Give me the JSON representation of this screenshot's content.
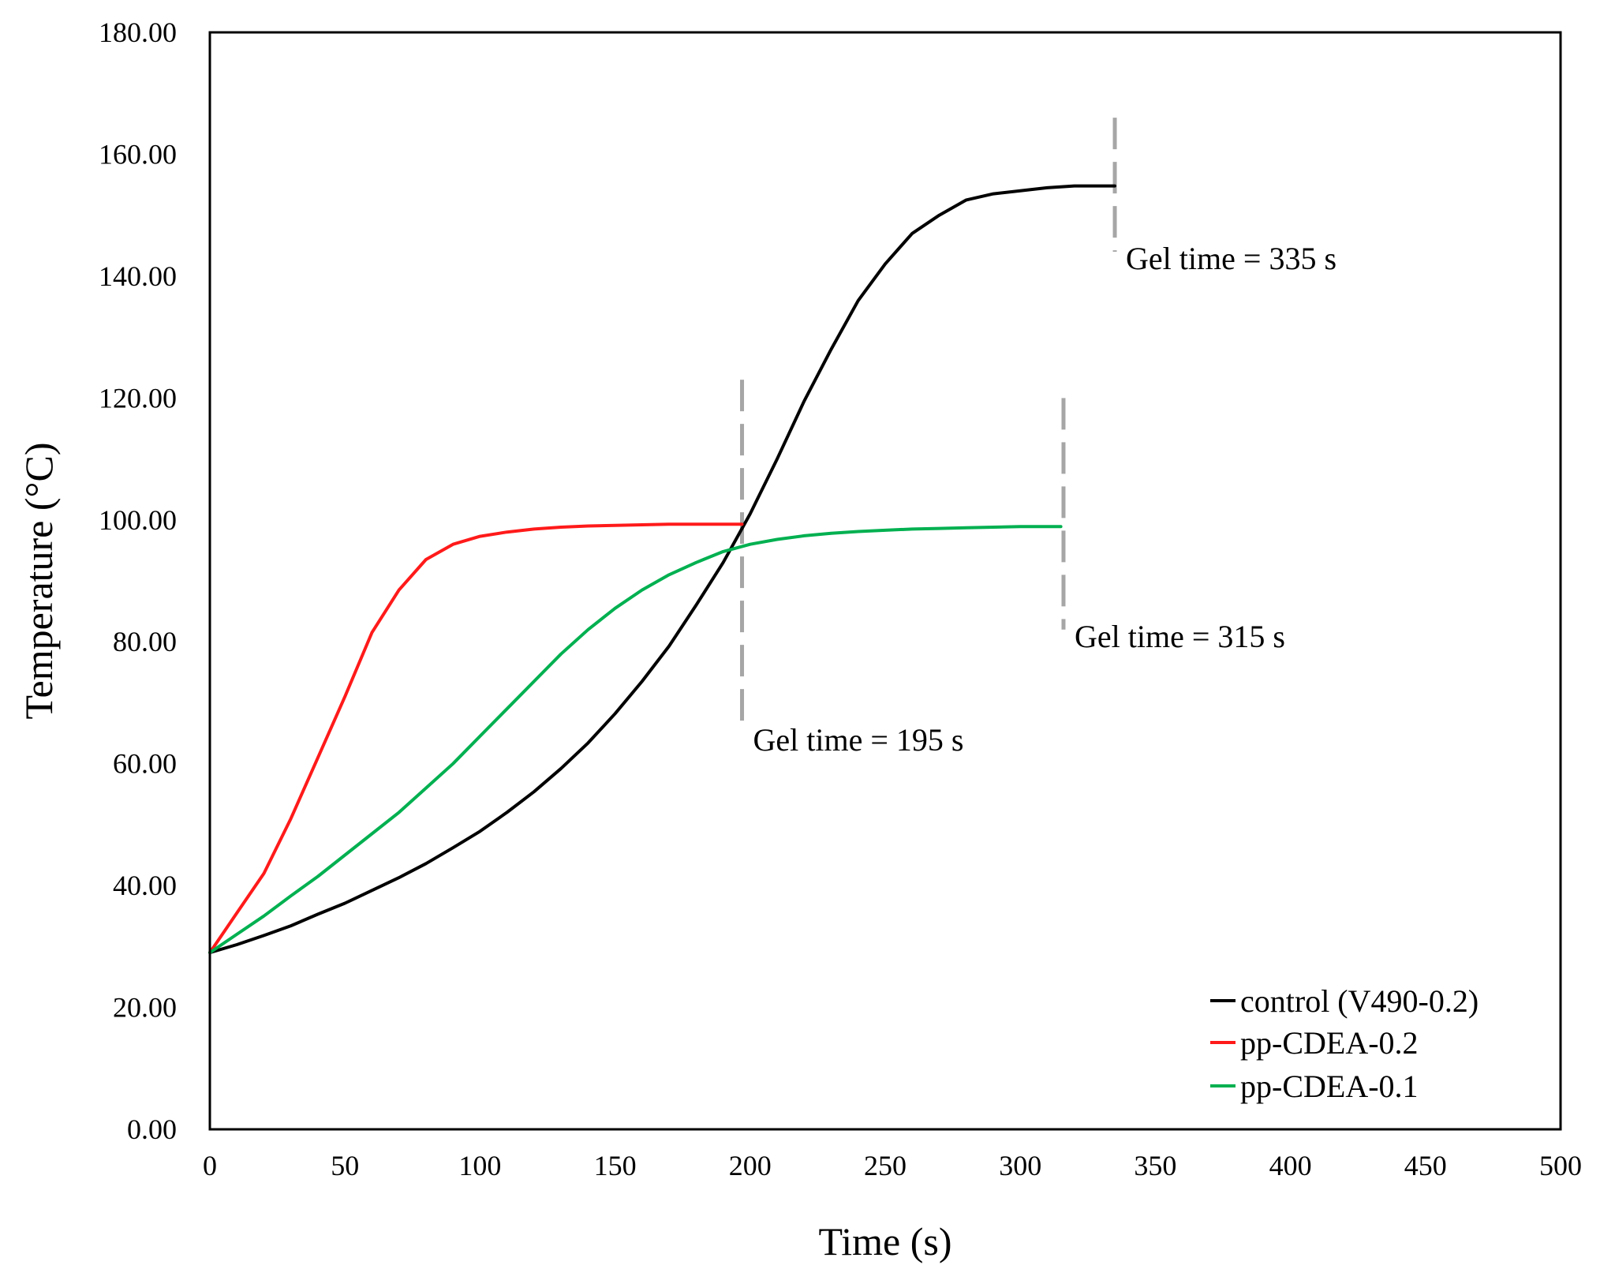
{
  "chart_data": {
    "type": "line",
    "title": "",
    "xlabel": "Time (s)",
    "ylabel": "Temperature (°C)",
    "xlim": [
      0,
      500
    ],
    "ylim": [
      0,
      180
    ],
    "x_ticks": [
      0,
      50,
      100,
      150,
      200,
      250,
      300,
      350,
      400,
      450,
      500
    ],
    "x_tick_labels": [
      "0",
      "50",
      "100",
      "150",
      "200",
      "250",
      "300",
      "350",
      "400",
      "450",
      "500"
    ],
    "y_ticks": [
      0,
      20,
      40,
      60,
      80,
      100,
      120,
      140,
      160,
      180
    ],
    "y_tick_labels": [
      "0.00",
      "20.00",
      "40.00",
      "60.00",
      "80.00",
      "100.00",
      "120.00",
      "140.00",
      "160.00",
      "180.00"
    ],
    "grid": false,
    "legend_position": "bottom-right",
    "series": [
      {
        "name": "control (V490-0.2)",
        "color": "#000000",
        "x": [
          0,
          10,
          20,
          30,
          40,
          50,
          60,
          70,
          80,
          90,
          100,
          110,
          120,
          130,
          140,
          150,
          160,
          170,
          180,
          190,
          200,
          210,
          220,
          230,
          240,
          250,
          260,
          270,
          280,
          290,
          300,
          310,
          320,
          335
        ],
        "y": [
          29,
          30.3,
          31.8,
          33.4,
          35.3,
          37.1,
          39.2,
          41.3,
          43.6,
          46.2,
          48.9,
          52,
          55.4,
          59.2,
          63.4,
          68.2,
          73.5,
          79.3,
          86,
          93,
          101,
          110,
          119.5,
          128,
          136,
          142,
          147,
          150,
          152.5,
          153.5,
          154,
          154.5,
          154.8,
          154.8
        ]
      },
      {
        "name": "pp-CDEA-0.2",
        "color": "#ff1a1a",
        "x": [
          0,
          10,
          20,
          30,
          40,
          50,
          60,
          70,
          80,
          90,
          100,
          110,
          120,
          130,
          140,
          150,
          160,
          170,
          180,
          190,
          197
        ],
        "y": [
          29,
          35.5,
          42,
          51,
          61,
          71,
          81.5,
          88.5,
          93.5,
          96,
          97.3,
          98,
          98.5,
          98.8,
          99,
          99.1,
          99.2,
          99.3,
          99.3,
          99.3,
          99.3
        ]
      },
      {
        "name": "pp-CDEA-0.1",
        "color": "#00b050",
        "x": [
          0,
          10,
          20,
          30,
          40,
          50,
          60,
          70,
          80,
          90,
          100,
          110,
          120,
          130,
          140,
          150,
          160,
          170,
          180,
          190,
          200,
          210,
          220,
          230,
          240,
          250,
          260,
          270,
          280,
          290,
          300,
          315
        ],
        "y": [
          29,
          32,
          35,
          38.3,
          41.5,
          45,
          48.5,
          52,
          56,
          60,
          64.5,
          69,
          73.5,
          78,
          82,
          85.5,
          88.5,
          91,
          93,
          94.8,
          96,
          96.8,
          97.4,
          97.8,
          98.1,
          98.3,
          98.5,
          98.6,
          98.7,
          98.8,
          98.9,
          98.9
        ]
      }
    ],
    "annotations": [
      {
        "text": "Gel time = 195 s",
        "x": 197,
        "y_from": 65,
        "y_to": 123
      },
      {
        "text": "Gel time = 315 s",
        "x": 316,
        "y_from": 82,
        "y_to": 120
      },
      {
        "text": "Gel time = 335 s",
        "x": 335,
        "y_from": 144,
        "y_to": 166
      }
    ]
  },
  "colors": {
    "axis": "#000000",
    "gel_marker": "#a6a6a6"
  }
}
